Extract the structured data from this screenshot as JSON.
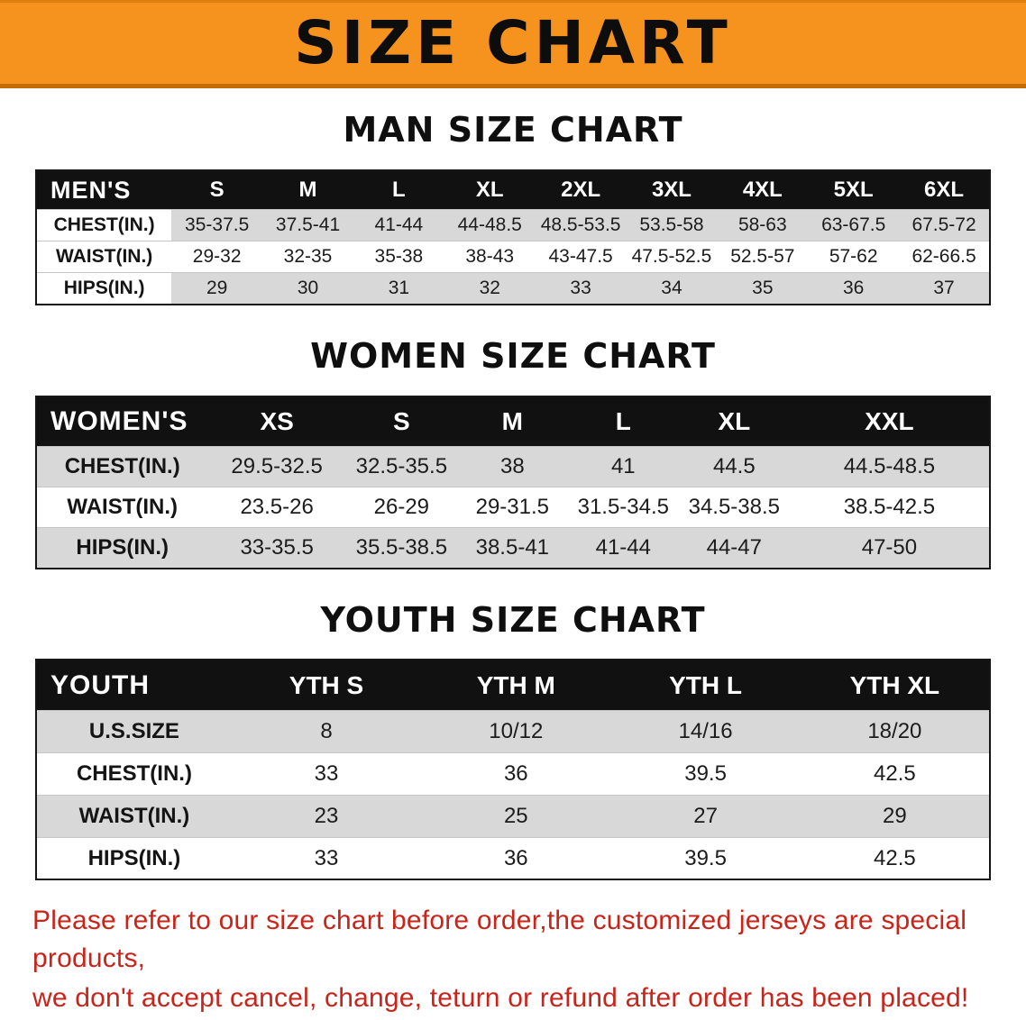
{
  "banner": {
    "title": "SIZE CHART"
  },
  "sections": [
    {
      "heading": "MAN SIZE CHART",
      "table": {
        "corner": "MEN'S",
        "columns": [
          "S",
          "M",
          "L",
          "XL",
          "2XL",
          "3XL",
          "4XL",
          "5XL",
          "6XL"
        ],
        "rows": [
          {
            "label": "CHEST(IN.)",
            "values": [
              "35-37.5",
              "37.5-41",
              "41-44",
              "44-48.5",
              "48.5-53.5",
              "53.5-58",
              "58-63",
              "63-67.5",
              "67.5-72"
            ]
          },
          {
            "label": "WAIST(IN.)",
            "values": [
              "29-32",
              "32-35",
              "35-38",
              "38-43",
              "43-47.5",
              "47.5-52.5",
              "52.5-57",
              "57-62",
              "62-66.5"
            ]
          },
          {
            "label": "HIPS(IN.)",
            "values": [
              "29",
              "30",
              "31",
              "32",
              "33",
              "34",
              "35",
              "36",
              "37"
            ]
          }
        ]
      }
    },
    {
      "heading": "WOMEN SIZE CHART",
      "table": {
        "corner": "WOMEN'S",
        "columns": [
          "XS",
          "S",
          "M",
          "L",
          "XL",
          "XXL"
        ],
        "rows": [
          {
            "label": "CHEST(IN.)",
            "values": [
              "29.5-32.5",
              "32.5-35.5",
              "38",
              "41",
              "44.5",
              "44.5-48.5"
            ]
          },
          {
            "label": "WAIST(IN.)",
            "values": [
              "23.5-26",
              "26-29",
              "29-31.5",
              "31.5-34.5",
              "34.5-38.5",
              "38.5-42.5"
            ]
          },
          {
            "label": "HIPS(IN.)",
            "values": [
              "33-35.5",
              "35.5-38.5",
              "38.5-41",
              "41-44",
              "44-47",
              "47-50"
            ]
          }
        ]
      }
    },
    {
      "heading": "YOUTH SIZE CHART",
      "table": {
        "corner": "YOUTH",
        "columns": [
          "YTH S",
          "YTH M",
          "YTH L",
          "YTH XL"
        ],
        "rows": [
          {
            "label": "U.S.SIZE",
            "values": [
              "8",
              "10/12",
              "14/16",
              "18/20"
            ]
          },
          {
            "label": "CHEST(IN.)",
            "values": [
              "33",
              "36",
              "39.5",
              "42.5"
            ]
          },
          {
            "label": "WAIST(IN.)",
            "values": [
              "23",
              "25",
              "27",
              "29"
            ]
          },
          {
            "label": "HIPS(IN.)",
            "values": [
              "33",
              "36",
              "39.5",
              "42.5"
            ]
          }
        ]
      }
    }
  ],
  "disclaimer": {
    "line1": "Please refer to our size chart before order,the customized jerseys are special products,",
    "line2": "we don't accept cancel, change, teturn or refund after order has been placed!"
  },
  "colors": {
    "banner_bg": "#f6921e",
    "header_bg": "#111111",
    "stripe": "#d8d8d8",
    "disclaimer_red": "#c9231a"
  }
}
